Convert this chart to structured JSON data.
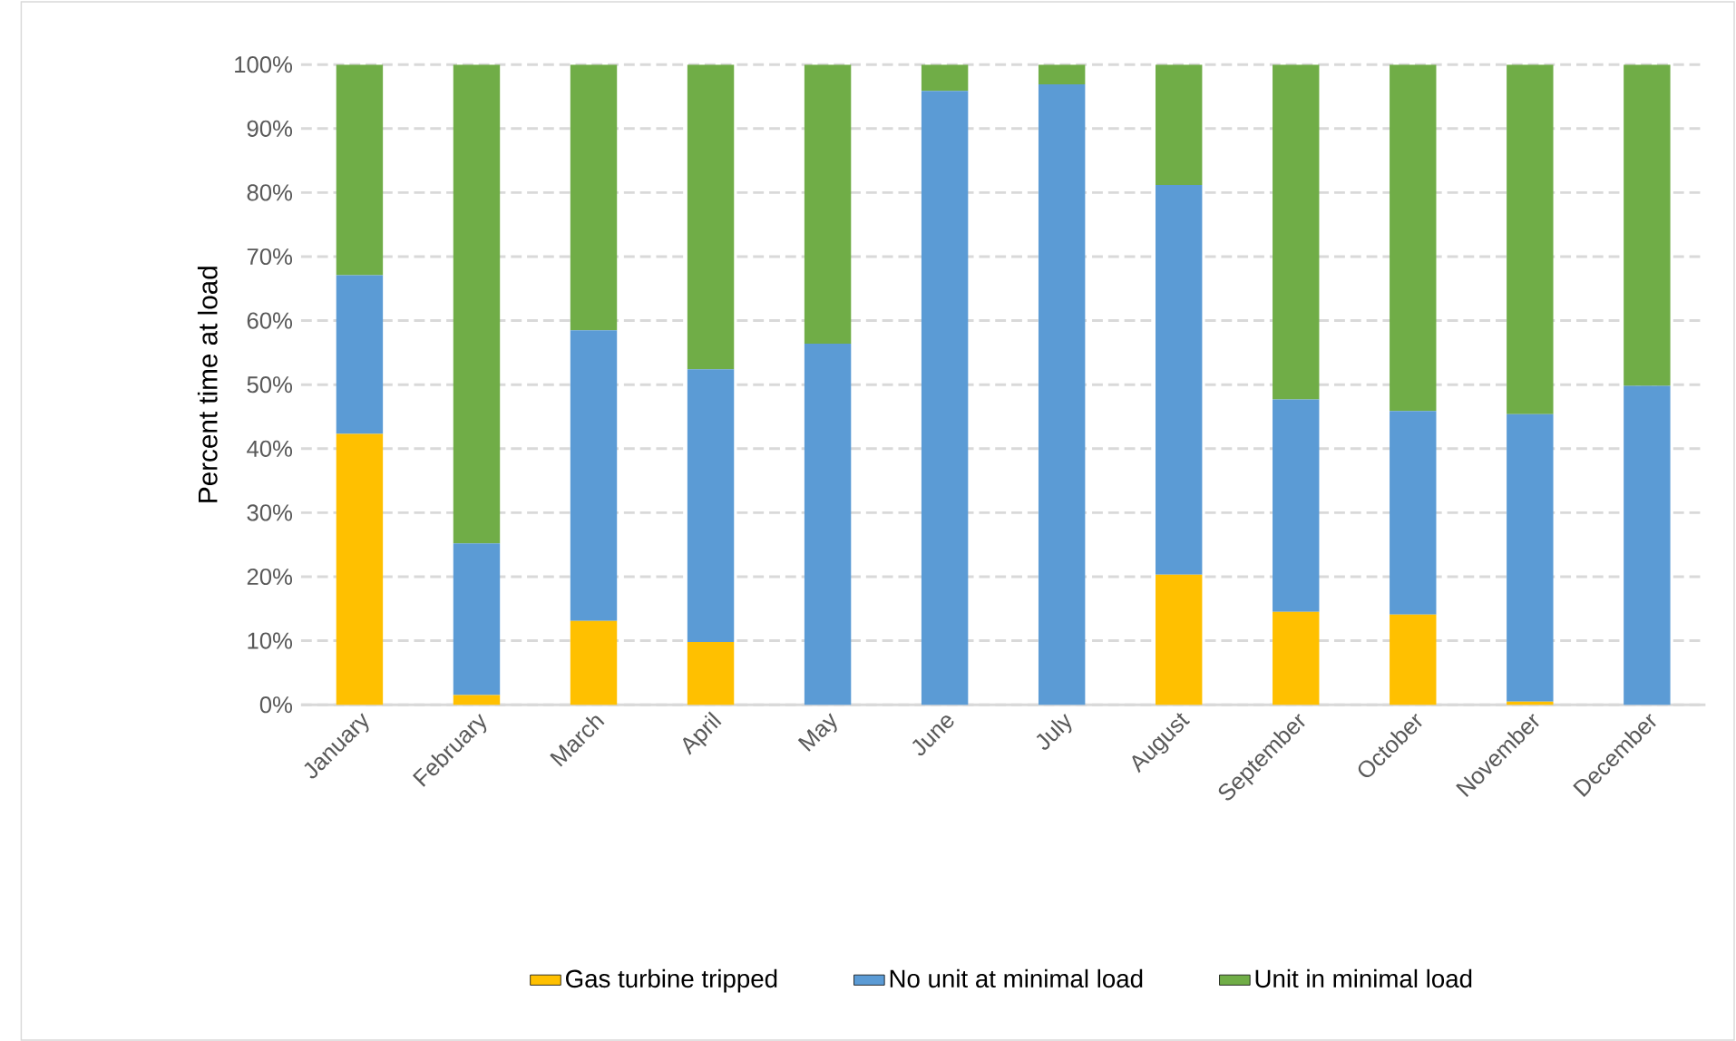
{
  "chart_data": {
    "type": "bar",
    "stacked": true,
    "ylabel": "Percent time at load",
    "categories": [
      "January",
      "February",
      "March",
      "April",
      "May",
      "June",
      "July",
      "August",
      "September",
      "October",
      "November",
      "December"
    ],
    "series": [
      {
        "name": "Gas turbine tripped",
        "color": "#ffc000",
        "values": [
          42.3,
          1.5,
          13.1,
          9.8,
          0,
          0,
          0,
          20.3,
          14.5,
          14.1,
          0.5,
          0
        ]
      },
      {
        "name": "No unit at minimal load",
        "color": "#5b9bd5",
        "values": [
          24.8,
          23.7,
          45.4,
          42.6,
          56.4,
          95.9,
          96.9,
          60.9,
          33.2,
          31.8,
          44.9,
          49.8
        ]
      },
      {
        "name": "Unit in minimal load",
        "color": "#70ad47",
        "values": [
          32.9,
          74.8,
          41.5,
          47.6,
          43.6,
          4.1,
          3.1,
          18.8,
          52.3,
          54.1,
          54.6,
          50.2
        ]
      }
    ],
    "ylim": [
      0,
      100
    ],
    "yticks": [
      {
        "value": 0,
        "label": "0%"
      },
      {
        "value": 10,
        "label": "10%"
      },
      {
        "value": 20,
        "label": "20%"
      },
      {
        "value": 30,
        "label": "30%"
      },
      {
        "value": 40,
        "label": "40%"
      },
      {
        "value": 50,
        "label": "50%"
      },
      {
        "value": 60,
        "label": "60%"
      },
      {
        "value": 70,
        "label": "70%"
      },
      {
        "value": 80,
        "label": "80%"
      },
      {
        "value": 90,
        "label": "90%"
      },
      {
        "value": 100,
        "label": "100%"
      }
    ],
    "grid": "y",
    "legend": "bottom"
  }
}
